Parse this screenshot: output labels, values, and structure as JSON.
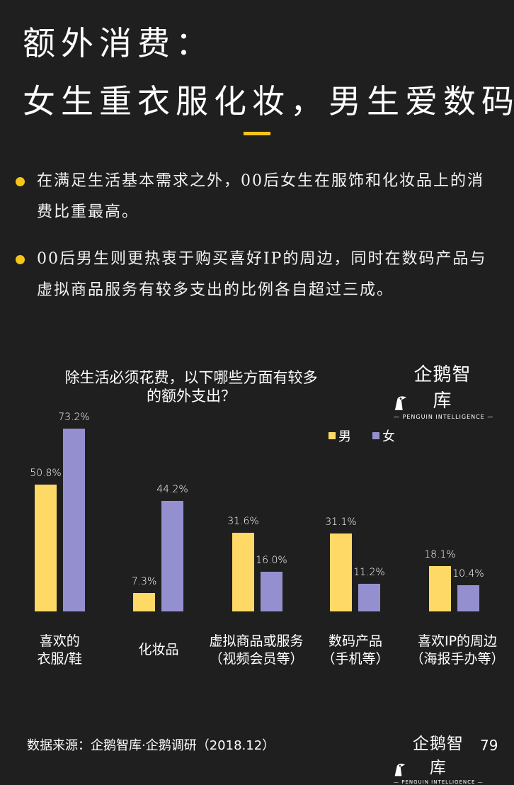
{
  "header": {
    "title_line1": "额外消费：",
    "title_line2": "女生重衣服化妆，男生爱数码"
  },
  "colors": {
    "background": "#201f1f",
    "accent": "#f5c518",
    "male": "#fed966",
    "female": "#9490d0"
  },
  "bullets": [
    {
      "icon": "yellow-dot",
      "text": "在满足生活基本需求之外，00后女生在服饰和化妆品上的消费比重最高。"
    },
    {
      "icon": "yellow-dot",
      "text": "00后男生则更热衷于购买喜好IP的周边，同时在数码产品与虚拟商品服务有较多支出的比例各自超过三成。"
    }
  ],
  "logo": {
    "name": "企鹅智库",
    "subtitle": "— PENGUIN INTELLIGENCE —",
    "icon": "penguin-icon"
  },
  "chart_data": {
    "type": "bar",
    "title": "除生活必须花费，以下哪些方面有较多的额外支出？",
    "title_line1": "除生活必须花费，以下哪些方面有较多",
    "title_line2": "的额外支出？",
    "categories": [
      "喜欢的衣服/鞋",
      "化妆品",
      "虚拟商品或服务（视频会员等）",
      "数码产品（手机等）",
      "喜欢IP的周边（海报手办等）"
    ],
    "category_lines": [
      [
        "喜欢的",
        "衣服/鞋"
      ],
      [
        "化妆品"
      ],
      [
        "虚拟商品或服务",
        "（视频会员等）"
      ],
      [
        "数码产品",
        "（手机等）"
      ],
      [
        "喜欢IP的周边",
        "（海报手办等）"
      ]
    ],
    "series": [
      {
        "name": "男",
        "values": [
          50.8,
          7.3,
          31.6,
          31.1,
          18.1
        ],
        "labels": [
          "50.8%",
          "7.3%",
          "31.6%",
          "31.1%",
          "18.1%"
        ]
      },
      {
        "name": "女",
        "values": [
          73.2,
          44.2,
          16.0,
          11.2,
          10.4
        ],
        "labels": [
          "73.2%",
          "44.2%",
          "16.0%",
          "11.2%",
          "10.4%"
        ]
      }
    ],
    "legend": [
      "男",
      "女"
    ],
    "legend_position": "top-right",
    "xlabel": "",
    "ylabel": "",
    "ylim": [
      0,
      80
    ],
    "grid": false,
    "unit": "%"
  },
  "footer": {
    "source": "数据来源：企鹅智库·企鹅调研（2018.12）",
    "page_number": "79"
  }
}
